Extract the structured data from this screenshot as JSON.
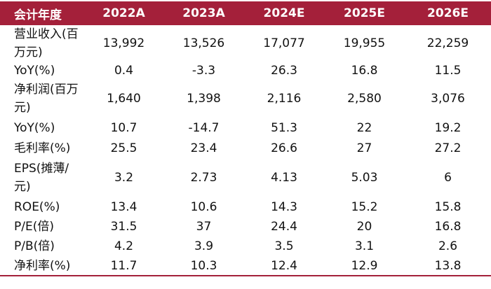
{
  "table": {
    "header": [
      "会计年度",
      "2022A",
      "2023A",
      "2024E",
      "2025E",
      "2026E"
    ],
    "rows": [
      [
        "营业收入(百万元)",
        "13,992",
        "13,526",
        "17,077",
        "19,955",
        "22,259"
      ],
      [
        "YoY(%)",
        "0.4",
        "-3.3",
        "26.3",
        "16.8",
        "11.5"
      ],
      [
        "净利润(百万元)",
        "1,640",
        "1,398",
        "2,116",
        "2,580",
        "3,076"
      ],
      [
        "YoY(%)",
        "10.7",
        "-14.7",
        "51.3",
        "22",
        "19.2"
      ],
      [
        "毛利率(%)",
        "25.5",
        "23.4",
        "26.6",
        "27",
        "27.2"
      ],
      [
        "EPS(摊薄/元)",
        "3.2",
        "2.73",
        "4.13",
        "5.03",
        "6"
      ],
      [
        "ROE(%)",
        "13.4",
        "10.6",
        "14.3",
        "15.2",
        "15.8"
      ],
      [
        "P/E(倍)",
        "31.5",
        "37",
        "24.4",
        "20",
        "16.8"
      ],
      [
        "P/B(倍)",
        "4.2",
        "3.9",
        "3.5",
        "3.1",
        "2.6"
      ],
      [
        "净利率(%)",
        "11.7",
        "10.3",
        "12.4",
        "12.9",
        "13.8"
      ]
    ]
  }
}
